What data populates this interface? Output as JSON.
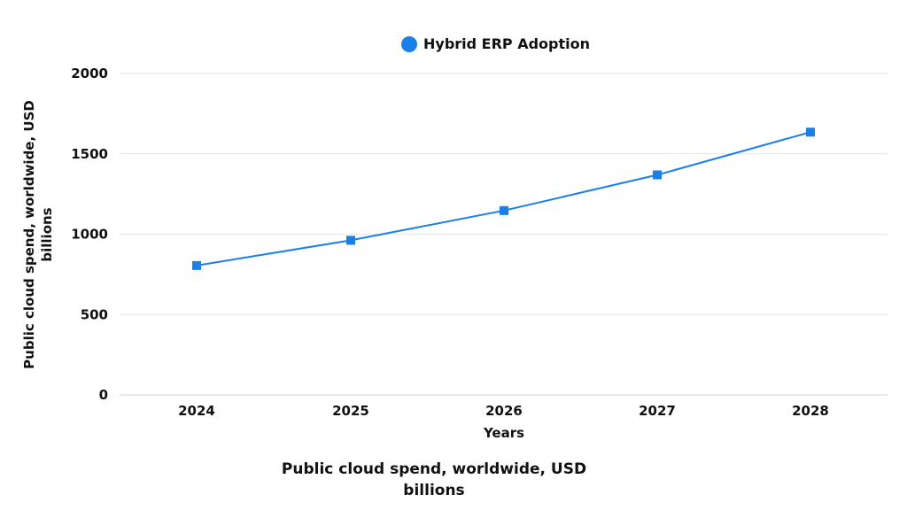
{
  "chart_data": {
    "type": "line",
    "title": "",
    "xlabel": "Years",
    "ylabel": "Public cloud spend, worldwide, USD billions",
    "ylabel_lines": [
      "Public cloud spend, worldwide, USD",
      "billions"
    ],
    "categories": [
      "2024",
      "2025",
      "2026",
      "2027",
      "2028"
    ],
    "series": [
      {
        "name": "Hybrid ERP Adoption",
        "color": "#1a7fe8",
        "values": [
          805,
          962,
          1147,
          1369,
          1635
        ]
      }
    ],
    "ylim": [
      0,
      2000
    ],
    "yticks": [
      0,
      500,
      1000,
      1500,
      2000
    ],
    "grid": true,
    "legend": "top-center"
  },
  "caption_lines": [
    "Public cloud spend, worldwide, USD",
    "billions"
  ],
  "colors": {
    "accent": "#1a7fe8",
    "grid": "#e6e6e6",
    "axis": "#cccccc"
  }
}
